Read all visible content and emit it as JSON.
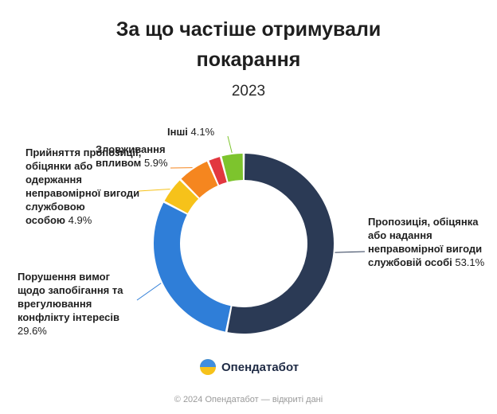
{
  "title_line1": "За що частіше отримували",
  "title_line2": "покарання",
  "subtitle": "2023",
  "brand": {
    "name": "Опендатабот",
    "icon": "opendatabot-logo-icon"
  },
  "footer": "© 2024 Опендатабот — відкриті дані",
  "colors": {
    "navy": "#2b3a55",
    "blue": "#2f7ed8",
    "yellow": "#f6c21a",
    "orange": "#f5861f",
    "red": "#e2373f",
    "green": "#7dc42d"
  },
  "chart_data": {
    "type": "pie",
    "donut": true,
    "title": "За що частіше отримували покарання",
    "subtitle": "2023",
    "slices": [
      {
        "bold": "Пропозиція, обіцянка або надання неправомірної вигоди службовій",
        "rest": "особі",
        "value": 53.1,
        "value_text": "53.1%",
        "color": "#2b3a55"
      },
      {
        "bold": "Порушення вимог щодо запобігання та врегулювання конфлікту інтересів",
        "rest": "",
        "value": 29.6,
        "value_text": "29.6%",
        "color": "#2f7ed8"
      },
      {
        "bold": "Прийняття пропозиції, обіцянки або одержання неправомірної вигоди службовою",
        "rest": "особою",
        "value": 4.9,
        "value_text": "4.9%",
        "color": "#f6c21a"
      },
      {
        "bold": "Зловживання",
        "rest": "впливом",
        "value": 5.9,
        "value_text": "5.9%",
        "color": "#f5861f"
      },
      {
        "bold": "",
        "rest": "",
        "value": 2.4,
        "value_text": "",
        "color": "#e2373f"
      },
      {
        "bold": "Інші",
        "rest": "",
        "value": 4.1,
        "value_text": "4.1%",
        "color": "#7dc42d"
      }
    ]
  }
}
